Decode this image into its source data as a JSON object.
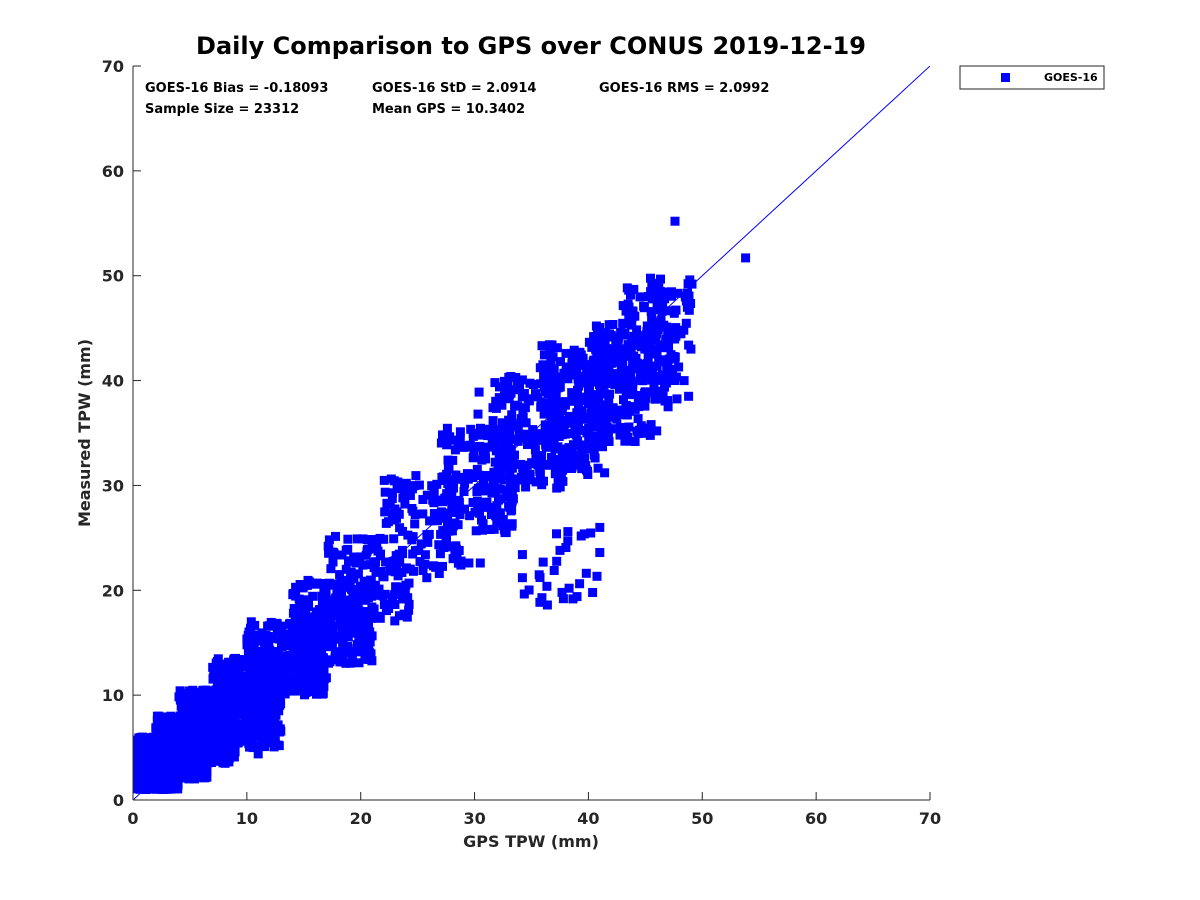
{
  "chart_data": {
    "type": "scatter",
    "title": "Daily Comparison to GPS over CONUS 2019-12-19",
    "xlabel": "GPS TPW (mm)",
    "ylabel": "Measured TPW (mm)",
    "xlim": [
      0,
      70
    ],
    "ylim": [
      0,
      70
    ],
    "xticks": [
      0,
      10,
      20,
      30,
      40,
      50,
      60,
      70
    ],
    "yticks": [
      0,
      10,
      20,
      30,
      40,
      50,
      60,
      70
    ],
    "grid": false,
    "legend_position": "outside-top-right",
    "reference_line": {
      "name": "1:1 line",
      "from": [
        0,
        0
      ],
      "to": [
        70,
        70
      ],
      "color": "#0000ff"
    },
    "stats": {
      "bias": "GOES-16 Bias = -0.18093",
      "std": "GOES-16 StD = 2.0914",
      "rms": "GOES-16 RMS = 2.0992",
      "sample_size": "Sample Size = 23312",
      "mean_gps": "Mean GPS = 10.3402"
    },
    "series": [
      {
        "name": "GOES-16",
        "color": "#0000ff",
        "marker": "square",
        "clusters": [
          {
            "x": [
              0.3,
              4.0
            ],
            "y": [
              1.0,
              6.0
            ],
            "count": 700,
            "seed": 11
          },
          {
            "x": [
              2.0,
              6.5
            ],
            "y": [
              2.0,
              8.0
            ],
            "count": 700,
            "seed": 12
          },
          {
            "x": [
              4.0,
              9.0
            ],
            "y": [
              3.5,
              10.5
            ],
            "count": 600,
            "seed": 13
          },
          {
            "x": [
              7.0,
              13.0
            ],
            "y": [
              5.0,
              13.5
            ],
            "count": 450,
            "seed": 14
          },
          {
            "x": [
              10.0,
              17.0
            ],
            "y": [
              10.0,
              17.0
            ],
            "count": 320,
            "seed": 15
          },
          {
            "x": [
              14.0,
              21.0
            ],
            "y": [
              13.0,
              21.0
            ],
            "count": 260,
            "seed": 16
          },
          {
            "x": [
              17.0,
              24.5
            ],
            "y": [
              17.0,
              25.5
            ],
            "count": 130,
            "seed": 17
          },
          {
            "x": [
              22.0,
              29.0
            ],
            "y": [
              21.5,
              31.0
            ],
            "count": 110,
            "seed": 18
          },
          {
            "x": [
              27.0,
              33.5
            ],
            "y": [
              25.5,
              35.5
            ],
            "count": 150,
            "seed": 19
          },
          {
            "x": [
              31.5,
              38.0
            ],
            "y": [
              29.5,
              40.5
            ],
            "count": 190,
            "seed": 20
          },
          {
            "x": [
              35.5,
              42.0
            ],
            "y": [
              31.0,
              43.5
            ],
            "count": 200,
            "seed": 21
          },
          {
            "x": [
              40.0,
              45.5
            ],
            "y": [
              34.0,
              45.5
            ],
            "count": 200,
            "seed": 22
          },
          {
            "x": [
              43.0,
              47.8
            ],
            "y": [
              38.0,
              49.0
            ],
            "count": 130,
            "seed": 23
          },
          {
            "x": [
              45.0,
              49.0
            ],
            "y": [
              41.0,
              50.0
            ],
            "count": 40,
            "seed": 24
          },
          {
            "x": [
              34.0,
              41.0
            ],
            "y": [
              18.5,
              26.0
            ],
            "count": 22,
            "seed": 25
          }
        ],
        "points": [
          [
            47.6,
            55.2
          ],
          [
            53.8,
            51.7
          ],
          [
            48.9,
            49.6
          ],
          [
            49.1,
            49.2
          ],
          [
            48.8,
            38.5
          ],
          [
            49.0,
            43.0
          ],
          [
            41.0,
            26.0
          ],
          [
            41.0,
            23.6
          ],
          [
            38.2,
            25.6
          ],
          [
            34.2,
            21.2
          ],
          [
            34.2,
            23.4
          ],
          [
            36.4,
            18.6
          ],
          [
            37.8,
            19.2
          ],
          [
            39.0,
            19.4
          ],
          [
            38.3,
            20.2
          ],
          [
            37.5,
            23.8
          ],
          [
            30.5,
            22.6
          ],
          [
            29.5,
            22.6
          ],
          [
            28.8,
            22.4
          ],
          [
            26.9,
            21.6
          ],
          [
            25.8,
            21.2
          ],
          [
            30.3,
            36.8
          ],
          [
            30.4,
            38.9
          ],
          [
            23.8,
            20.3
          ],
          [
            23.2,
            29.7
          ],
          [
            24.0,
            30.2
          ],
          [
            21.0,
            24.0
          ],
          [
            0.5,
            4.4
          ],
          [
            0.2,
            3.9
          ],
          [
            11.0,
            4.4
          ],
          [
            8.0,
            3.8
          ],
          [
            6.0,
            3.5
          ],
          [
            9.0,
            13.5
          ],
          [
            12.7,
            15.5
          ],
          [
            14.5,
            17.5
          ],
          [
            40.7,
            45.2
          ],
          [
            36.8,
            43.4
          ],
          [
            38.9,
            42.6
          ],
          [
            36.0,
            41.5
          ],
          [
            47.0,
            37.5
          ],
          [
            48.4,
            40.0
          ],
          [
            46.0,
            35.2
          ],
          [
            45.5,
            35.8
          ],
          [
            45.0,
            38.5
          ]
        ]
      }
    ]
  }
}
